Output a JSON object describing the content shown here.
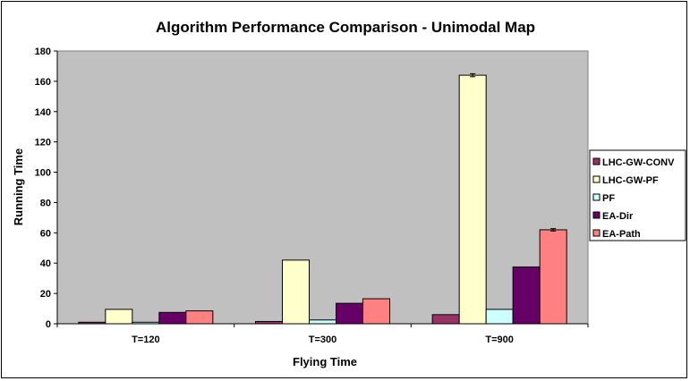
{
  "chart_data": {
    "type": "bar",
    "title": "Algorithm Performance Comparison - Unimodal Map",
    "xlabel": "Flying Time",
    "ylabel": "Running Time",
    "ylim": [
      0,
      180
    ],
    "yticks": [
      0,
      20,
      40,
      60,
      80,
      100,
      120,
      140,
      160,
      180
    ],
    "categories": [
      "T=120",
      "T=300",
      "T=900"
    ],
    "grid": false,
    "legend_position": "right",
    "plot_background": "#c0c0c0",
    "series": [
      {
        "name": "LHC-GW-CONV",
        "color": "#993366",
        "values": [
          1,
          1.5,
          6
        ]
      },
      {
        "name": "LHC-GW-PF",
        "color": "#ffffcc",
        "values": [
          9.5,
          42,
          164
        ],
        "error": [
          0,
          0,
          1
        ]
      },
      {
        "name": "PF",
        "color": "#ccffff",
        "values": [
          1,
          2.5,
          9.5
        ]
      },
      {
        "name": "EA-Dir",
        "color": "#660066",
        "values": [
          7.5,
          13.5,
          37.5
        ]
      },
      {
        "name": "EA-Path",
        "color": "#ff8080",
        "values": [
          8.5,
          16.5,
          62
        ],
        "error": [
          0,
          0,
          0.8
        ]
      }
    ]
  }
}
